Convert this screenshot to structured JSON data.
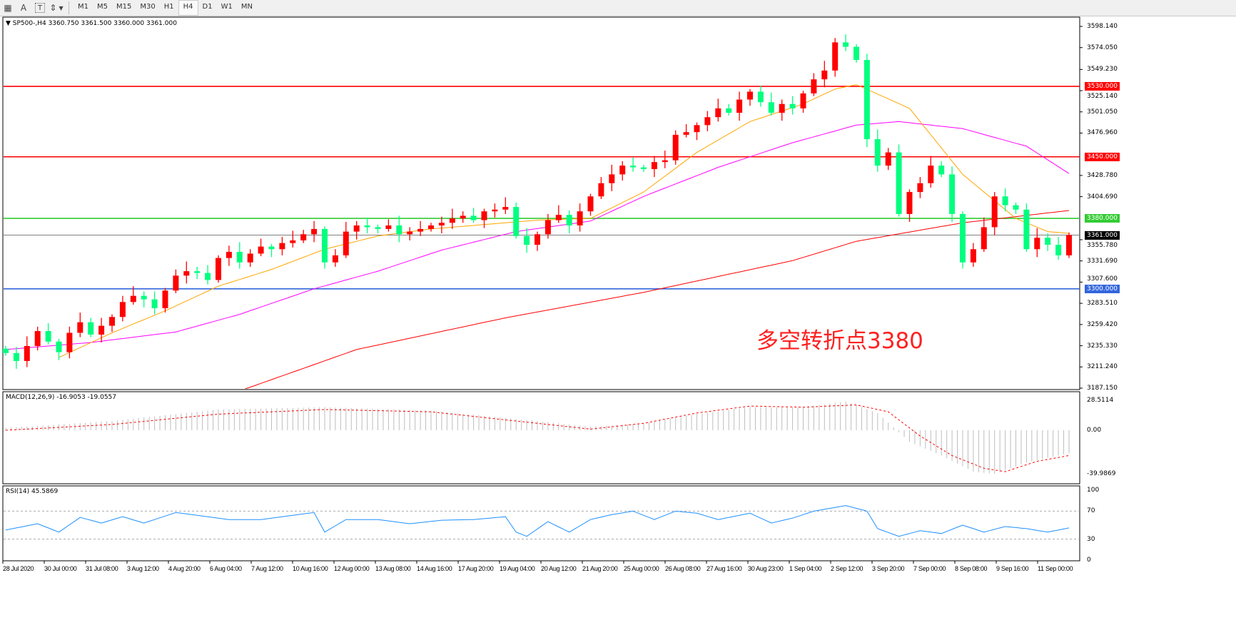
{
  "toolbar": {
    "icons": [
      "grid-icon",
      "text-icon",
      "text-label-icon",
      "arrows-icon"
    ],
    "text_icon_label": "A",
    "label_icon_label": "T",
    "timeframes": [
      "M1",
      "M5",
      "M15",
      "M30",
      "H1",
      "H4",
      "D1",
      "W1",
      "MN"
    ],
    "active_timeframe": "H4"
  },
  "chart": {
    "header": "SP500-,H4  3360.750 3361.500 3360.000 3361.000",
    "annotation": "多空转折点3380",
    "colors": {
      "bull": "#ff0000",
      "bear": "#00ff7f",
      "ma_fast": "#ffa500",
      "ma_mid": "#ff00ff",
      "ma_slow": "#ff0000",
      "resistance": "#ff0000",
      "pivot": "#33cc33",
      "support": "#3366dd",
      "current": "#808080"
    },
    "price_ticks": [
      "3598.140",
      "3574.050",
      "3549.230",
      "3525.140",
      "3501.050",
      "3476.960",
      "3428.780",
      "3404.690",
      "3355.780",
      "3331.690",
      "3307.600",
      "3283.510",
      "3259.420",
      "3235.330",
      "3211.240",
      "3187.150"
    ],
    "levels": [
      {
        "price": 3530,
        "label": "3530.000",
        "kind": "resistance"
      },
      {
        "price": 3450,
        "label": "3450.000",
        "kind": "resistance"
      },
      {
        "price": 3380,
        "label": "3380.000",
        "kind": "pivot"
      },
      {
        "price": 3361,
        "label": "3361.000",
        "kind": "current"
      },
      {
        "price": 3300,
        "label": "3300.000",
        "kind": "support"
      }
    ],
    "time_labels": [
      "28 Jul 2020",
      "30 Jul 00:00",
      "31 Jul 08:00",
      "3 Aug 12:00",
      "4 Aug 20:00",
      "6 Aug 04:00",
      "7 Aug 12:00",
      "10 Aug 16:00",
      "12 Aug 00:00",
      "13 Aug 08:00",
      "14 Aug 16:00",
      "17 Aug 20:00",
      "19 Aug 04:00",
      "20 Aug 12:00",
      "21 Aug 20:00",
      "25 Aug 00:00",
      "26 Aug 08:00",
      "27 Aug 16:00",
      "30 Aug 23:00",
      "1 Sep 04:00",
      "2 Sep 12:00",
      "3 Sep 20:00",
      "7 Sep 00:00",
      "8 Sep 08:00",
      "9 Sep 16:00",
      "11 Sep 00:00"
    ]
  },
  "macd": {
    "label": "MACD(12,26,9) -16.9053 -19.0557",
    "ticks": [
      "28.5114",
      "0.00",
      "-39.9869"
    ]
  },
  "rsi": {
    "label": "RSI(14) 45.5869",
    "ticks": [
      "100",
      "70",
      "30",
      "0"
    ]
  },
  "chart_data": {
    "type": "candlestick",
    "first_open": 3232,
    "closes": [
      3227,
      3218,
      3235,
      3252,
      3240,
      3228,
      3250,
      3262,
      3248,
      3258,
      3268,
      3285,
      3292,
      3288,
      3278,
      3298,
      3315,
      3320,
      3318,
      3310,
      3335,
      3342,
      3330,
      3340,
      3348,
      3345,
      3352,
      3355,
      3362,
      3368,
      3330,
      3338,
      3365,
      3372,
      3370,
      3368,
      3372,
      3362,
      3365,
      3368,
      3372,
      3375,
      3380,
      3383,
      3378,
      3388,
      3390,
      3393,
      3360,
      3350,
      3362,
      3378,
      3384,
      3372,
      3388,
      3405,
      3420,
      3430,
      3440,
      3438,
      3436,
      3444,
      3446,
      3475,
      3478,
      3486,
      3495,
      3505,
      3500,
      3515,
      3524,
      3512,
      3500,
      3510,
      3505,
      3522,
      3538,
      3548,
      3580,
      3575,
      3560,
      3470,
      3440,
      3455,
      3385,
      3410,
      3420,
      3440,
      3430,
      3385,
      3330,
      3345,
      3370,
      3405,
      3395,
      3390,
      3345,
      3358,
      3350,
      3338,
      3361
    ],
    "ma_fast": [
      [
        5,
        3222
      ],
      [
        10,
        3250
      ],
      [
        15,
        3275
      ],
      [
        20,
        3303
      ],
      [
        25,
        3322
      ],
      [
        30,
        3345
      ],
      [
        35,
        3360
      ],
      [
        40,
        3368
      ],
      [
        45,
        3373
      ],
      [
        50,
        3378
      ],
      [
        55,
        3380
      ],
      [
        60,
        3410
      ],
      [
        65,
        3455
      ],
      [
        70,
        3490
      ],
      [
        75,
        3510
      ],
      [
        78,
        3527
      ],
      [
        80,
        3532
      ],
      [
        85,
        3505
      ],
      [
        90,
        3430
      ],
      [
        95,
        3380
      ],
      [
        98,
        3365
      ],
      [
        100,
        3363
      ]
    ],
    "ma_mid": [
      [
        0,
        3231
      ],
      [
        8,
        3239
      ],
      [
        16,
        3251
      ],
      [
        22,
        3271
      ],
      [
        29,
        3300
      ],
      [
        35,
        3320
      ],
      [
        41,
        3344
      ],
      [
        48,
        3365
      ],
      [
        55,
        3377
      ],
      [
        60,
        3405
      ],
      [
        67,
        3438
      ],
      [
        74,
        3466
      ],
      [
        80,
        3486
      ],
      [
        84,
        3490
      ],
      [
        90,
        3482
      ],
      [
        96,
        3462
      ],
      [
        100,
        3431
      ]
    ],
    "ma_slow": [
      [
        22,
        3184
      ],
      [
        33,
        3231
      ],
      [
        47,
        3267
      ],
      [
        60,
        3296
      ],
      [
        74,
        3332
      ],
      [
        80,
        3354
      ],
      [
        90,
        3375
      ],
      [
        100,
        3389
      ]
    ],
    "macd_hist": [
      [
        0,
        2
      ],
      [
        10,
        8
      ],
      [
        20,
        18
      ],
      [
        30,
        20
      ],
      [
        40,
        17
      ],
      [
        50,
        8
      ],
      [
        55,
        3
      ],
      [
        60,
        6
      ],
      [
        65,
        14
      ],
      [
        70,
        20
      ],
      [
        75,
        20
      ],
      [
        79,
        25
      ],
      [
        82,
        15
      ],
      [
        85,
        -10
      ],
      [
        88,
        -22
      ],
      [
        91,
        -36
      ],
      [
        93,
        -38
      ],
      [
        96,
        -28
      ],
      [
        100,
        -20
      ]
    ],
    "macd_signal": [
      [
        0,
        0
      ],
      [
        10,
        5
      ],
      [
        20,
        14
      ],
      [
        30,
        18
      ],
      [
        40,
        16
      ],
      [
        50,
        6
      ],
      [
        55,
        1
      ],
      [
        60,
        6
      ],
      [
        65,
        15
      ],
      [
        70,
        21
      ],
      [
        75,
        20
      ],
      [
        80,
        22
      ],
      [
        83,
        16
      ],
      [
        86,
        -5
      ],
      [
        89,
        -22
      ],
      [
        92,
        -33
      ],
      [
        94,
        -36
      ],
      [
        97,
        -27
      ],
      [
        100,
        -22
      ]
    ],
    "rsi": [
      [
        0,
        43
      ],
      [
        3,
        52
      ],
      [
        5,
        40
      ],
      [
        7,
        61
      ],
      [
        9,
        53
      ],
      [
        11,
        62
      ],
      [
        13,
        53
      ],
      [
        16,
        68
      ],
      [
        19,
        62
      ],
      [
        21,
        58
      ],
      [
        24,
        58
      ],
      [
        27,
        64
      ],
      [
        29,
        68
      ],
      [
        30,
        40
      ],
      [
        32,
        58
      ],
      [
        35,
        58
      ],
      [
        38,
        52
      ],
      [
        41,
        57
      ],
      [
        44,
        58
      ],
      [
        47,
        62
      ],
      [
        48,
        40
      ],
      [
        49,
        34
      ],
      [
        51,
        55
      ],
      [
        53,
        40
      ],
      [
        55,
        58
      ],
      [
        57,
        65
      ],
      [
        59,
        70
      ],
      [
        61,
        58
      ],
      [
        63,
        70
      ],
      [
        65,
        67
      ],
      [
        67,
        58
      ],
      [
        70,
        67
      ],
      [
        72,
        53
      ],
      [
        74,
        60
      ],
      [
        76,
        70
      ],
      [
        79,
        78
      ],
      [
        81,
        70
      ],
      [
        82,
        45
      ],
      [
        84,
        34
      ],
      [
        86,
        42
      ],
      [
        88,
        38
      ],
      [
        90,
        50
      ],
      [
        92,
        40
      ],
      [
        94,
        48
      ],
      [
        96,
        45
      ],
      [
        98,
        40
      ],
      [
        100,
        46
      ]
    ],
    "price_range": [
      3187.15,
      3598.14
    ],
    "macd_range": [
      -39.9869,
      28.5114
    ],
    "rsi_range": [
      0,
      100
    ]
  }
}
